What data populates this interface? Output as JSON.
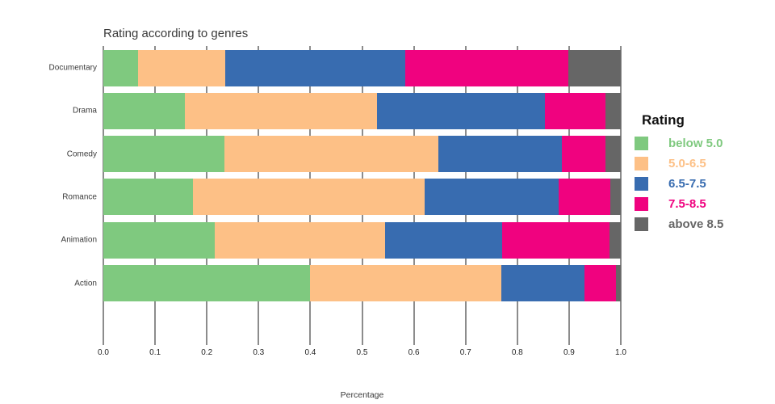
{
  "chart_data": {
    "type": "bar",
    "orientation": "horizontal",
    "stacked": true,
    "title": "Rating according to genres",
    "xlabel": "Percentage",
    "ylabel": "",
    "xlim": [
      0,
      1
    ],
    "x_tick_labels": [
      "0.0",
      "0.1",
      "0.2",
      "0.3",
      "0.4",
      "0.5",
      "0.6",
      "0.7",
      "0.8",
      "0.9",
      "1.0"
    ],
    "categories": [
      "Documentary",
      "Drama",
      "Comedy",
      "Romance",
      "Animation",
      "Action"
    ],
    "series": [
      {
        "name": "below 5.0",
        "color": "#7fc97f",
        "values": [
          0.067,
          0.157,
          0.234,
          0.173,
          0.215,
          0.4
        ]
      },
      {
        "name": "5.0-6.5",
        "color": "#fdc086",
        "values": [
          0.169,
          0.372,
          0.413,
          0.448,
          0.33,
          0.369
        ]
      },
      {
        "name": "6.5-7.5",
        "color": "#386cb0",
        "values": [
          0.347,
          0.325,
          0.239,
          0.259,
          0.226,
          0.161
        ]
      },
      {
        "name": "7.5-8.5",
        "color": "#f0027f",
        "values": [
          0.315,
          0.117,
          0.085,
          0.1,
          0.207,
          0.06
        ]
      },
      {
        "name": "above 8.5",
        "color": "#666666",
        "values": [
          0.102,
          0.029,
          0.029,
          0.02,
          0.022,
          0.01
        ]
      }
    ],
    "legend": {
      "title": "Rating",
      "position": "right"
    },
    "grid": {
      "vertical_lines": true,
      "color": "#1a1a1a"
    }
  }
}
